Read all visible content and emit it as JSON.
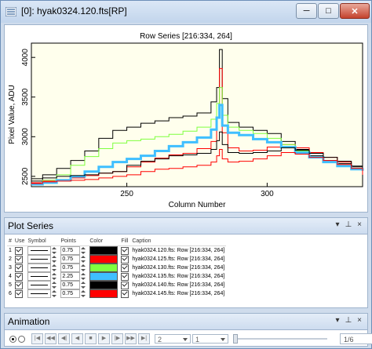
{
  "window": {
    "title": "[0]: hyak0324.120.fts[RP]"
  },
  "chart_data": {
    "type": "line",
    "title": "Row Series [216:334, 264]",
    "xlabel": "Column Number",
    "ylabel": "Pixel Value, ADU",
    "xlim": [
      216,
      334
    ],
    "ylim": [
      2370,
      4180
    ],
    "xticks": [
      250,
      300
    ],
    "yticks": [
      2500,
      3000,
      3500,
      4000
    ],
    "grid": false,
    "series": [
      {
        "name": "hyak0324.120.fts: Row [216:334, 264]",
        "color": "#000000",
        "x": [
          216,
          220,
          225,
          230,
          235,
          240,
          245,
          250,
          255,
          260,
          265,
          270,
          275,
          280,
          282,
          283,
          284,
          286,
          290,
          295,
          300,
          305,
          310,
          315,
          320,
          325,
          330,
          334
        ],
        "y": [
          2440,
          2520,
          2600,
          2700,
          2820,
          2980,
          3080,
          3120,
          3170,
          3200,
          3240,
          3260,
          3300,
          3440,
          3620,
          4100,
          3480,
          3180,
          3120,
          3080,
          3040,
          2940,
          2840,
          2760,
          2700,
          2660,
          2620,
          2600
        ]
      },
      {
        "name": "hyak0324.125.fts: Row [216:334, 264]",
        "color": "#ff0000",
        "x": [
          216,
          220,
          225,
          230,
          235,
          240,
          245,
          250,
          255,
          260,
          265,
          270,
          275,
          280,
          282,
          283,
          284,
          286,
          290,
          295,
          300,
          305,
          310,
          315,
          320,
          325,
          330,
          334
        ],
        "y": [
          2420,
          2440,
          2460,
          2480,
          2510,
          2540,
          2560,
          2620,
          2680,
          2730,
          2770,
          2790,
          2850,
          2940,
          3230,
          3860,
          3050,
          2860,
          2820,
          2830,
          2870,
          2900,
          2860,
          2800,
          2740,
          2680,
          2600,
          2520
        ]
      },
      {
        "name": "hyak0324.130.fts: Row [216:334, 264]",
        "color": "#7fff3f",
        "x": [
          216,
          220,
          225,
          230,
          235,
          240,
          245,
          250,
          255,
          260,
          265,
          270,
          275,
          280,
          282,
          283,
          284,
          286,
          290,
          295,
          300,
          305,
          310,
          315,
          320,
          325,
          330,
          334
        ],
        "y": [
          2410,
          2450,
          2520,
          2640,
          2750,
          2850,
          2920,
          2950,
          2970,
          3000,
          3030,
          3070,
          3120,
          3220,
          3420,
          3620,
          3270,
          3120,
          3080,
          3040,
          2980,
          2900,
          2820,
          2750,
          2680,
          2640,
          2600,
          2580
        ]
      },
      {
        "name": "hyak0324.135.fts: Row [216:334, 264]",
        "color": "#3fbfff",
        "x": [
          216,
          220,
          225,
          230,
          235,
          240,
          245,
          250,
          255,
          260,
          265,
          270,
          275,
          280,
          282,
          283,
          284,
          286,
          290,
          295,
          300,
          305,
          310,
          315,
          320,
          325,
          330,
          334
        ],
        "y": [
          2400,
          2420,
          2450,
          2500,
          2560,
          2620,
          2680,
          2720,
          2760,
          2820,
          2880,
          2930,
          2990,
          3090,
          3240,
          3400,
          3140,
          3050,
          3020,
          2970,
          2930,
          2870,
          2800,
          2740,
          2680,
          2630,
          2590,
          2570
        ]
      },
      {
        "name": "hyak0324.140.fts: Row [216:334, 264]",
        "color": "#000000",
        "x": [
          216,
          220,
          225,
          230,
          235,
          240,
          245,
          250,
          255,
          260,
          265,
          270,
          275,
          280,
          282,
          283,
          284,
          286,
          290,
          295,
          300,
          305,
          310,
          315,
          320,
          325,
          330,
          334
        ],
        "y": [
          2470,
          2480,
          2500,
          2510,
          2520,
          2540,
          2560,
          2640,
          2690,
          2720,
          2760,
          2770,
          2790,
          2840,
          2950,
          3060,
          2900,
          2800,
          2790,
          2800,
          2820,
          2860,
          2830,
          2790,
          2740,
          2690,
          2630,
          2560
        ]
      },
      {
        "name": "hyak0324.145.fts: Row [216:334, 264]",
        "color": "#ff0000",
        "x": [
          216,
          220,
          225,
          230,
          235,
          240,
          245,
          250,
          255,
          260,
          265,
          270,
          275,
          280,
          282,
          283,
          284,
          286,
          290,
          295,
          300,
          305,
          310,
          315,
          320,
          325,
          330,
          334
        ],
        "y": [
          2410,
          2430,
          2440,
          2450,
          2460,
          2480,
          2500,
          2520,
          2560,
          2590,
          2600,
          2620,
          2640,
          2680,
          2760,
          2840,
          2720,
          2680,
          2690,
          2720,
          2760,
          2800,
          2780,
          2740,
          2700,
          2650,
          2600,
          2540
        ]
      }
    ]
  },
  "plot_series": {
    "title": "Plot Series",
    "columns": [
      "#",
      "Use",
      "Symbol",
      "Points",
      "Color",
      "Fill",
      "Caption"
    ],
    "rows": [
      {
        "num": "1",
        "points": "0.75",
        "color": "#000000",
        "caption": "hyak0324.120.fts: Row [216:334, 264]"
      },
      {
        "num": "2",
        "points": "0.75",
        "color": "#ff0000",
        "caption": "hyak0324.125.fts: Row [216:334, 264]"
      },
      {
        "num": "3",
        "points": "0.75",
        "color": "#7fff3f",
        "caption": "hyak0324.130.fts: Row [216:334, 264]"
      },
      {
        "num": "4",
        "points": "2.25",
        "color": "#3fbfff",
        "caption": "hyak0324.135.fts: Row [216:334, 264]"
      },
      {
        "num": "5",
        "points": "0.75",
        "color": "#000000",
        "caption": "hyak0324.140.fts: Row [216:334, 264]"
      },
      {
        "num": "6",
        "points": "0.75",
        "color": "#ff0000",
        "caption": "hyak0324.145.fts: Row [216:334, 264]"
      }
    ]
  },
  "animation": {
    "title": "Animation",
    "speed_value": "2",
    "step_value": "1",
    "frame_value": "1/6"
  },
  "panel_buttons": {
    "dropdown": "▾",
    "pin": "⊥",
    "close": "×"
  }
}
